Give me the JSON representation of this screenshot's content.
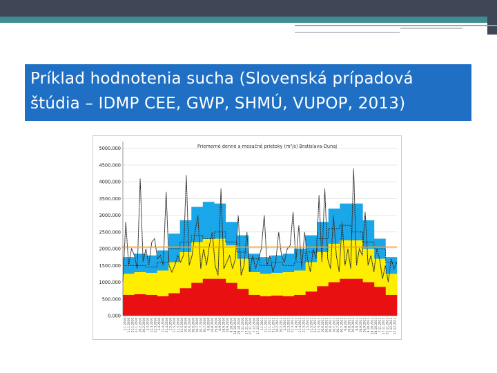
{
  "slide": {
    "title": "Príklad hodnotenia sucha (Slovenská prípadová štúdia – IDMP CEE, GWP, SHMÚ, VUPOP, 2013)"
  },
  "colors": {
    "header_dark": "#3f4656",
    "header_teal": "#3f8c93",
    "title_box": "#1f6fc4",
    "band_red": "#e81010",
    "band_yellow": "#ffee00",
    "band_blue": "#1aa7ea",
    "threshold": "#f0a030",
    "daily_line": "#111111"
  },
  "chart_data": {
    "type": "area",
    "title": "Priemerné denné a mesačné prietoky (m³/s) Bratislava-Dunaj",
    "ylim": [
      0,
      5200
    ],
    "yticks": [
      "0.000",
      "500.000",
      "1000.000",
      "1500.000",
      "2000.000",
      "2500.000",
      "3000.000",
      "3500.000",
      "4000.000",
      "4500.000",
      "5000.000"
    ],
    "ytick_values": [
      0,
      500,
      1000,
      1500,
      2000,
      2500,
      3000,
      3500,
      4000,
      4500,
      5000
    ],
    "months": 24,
    "series": [
      {
        "values": [
          620,
          640,
          620,
          580,
          670,
          820,
          980,
          1100,
          1100,
          980,
          800,
          620,
          580,
          600,
          580,
          620,
          720,
          880,
          1000,
          1100,
          1100,
          1000,
          860,
          620
        ]
      },
      {
        "values": [
          1250,
          1300,
          1280,
          1350,
          1600,
          1900,
          2200,
          2300,
          2300,
          2100,
          1700,
          1300,
          1250,
          1280,
          1300,
          1350,
          1600,
          1900,
          2150,
          2250,
          2250,
          2000,
          1700,
          1250
        ]
      },
      {
        "values": [
          1750,
          1850,
          1800,
          1950,
          2450,
          2850,
          3250,
          3400,
          3350,
          2800,
          2400,
          1850,
          1750,
          1800,
          1850,
          2000,
          2400,
          2800,
          3200,
          3350,
          3350,
          2850,
          2300,
          1750
        ]
      },
      {
        "values": [
          1000,
          2800,
          1500,
          2000,
          1800,
          1400,
          4100,
          1600,
          2000,
          1500,
          2200,
          2300,
          1700,
          1800,
          1500,
          3700,
          1500,
          1300,
          1500,
          1800,
          1600,
          1800,
          4200,
          1500,
          1800,
          2500,
          3000,
          1400,
          2000,
          1500,
          2100,
          2500,
          1500,
          1200,
          3800,
          1400,
          1600,
          1800,
          1400,
          1700,
          3000,
          1200,
          1500,
          2500,
          1300,
          1800,
          1400,
          1700,
          2000,
          3000,
          1500,
          1800,
          1300,
          1600,
          2500,
          1800,
          1600,
          2000,
          2100,
          3100,
          1600,
          2700,
          1400,
          2500,
          1700,
          1300,
          2000,
          1700,
          3600,
          1600,
          3800,
          1700,
          1400,
          3000,
          1800,
          1300,
          2800,
          1500,
          2000,
          1400,
          4400,
          1500,
          2000,
          1800,
          3100,
          1500,
          1800,
          1300,
          2000,
          1700,
          1100,
          1500,
          1000,
          1700,
          1400,
          1600
        ]
      },
      {
        "values": [
          1500,
          1500,
          1450,
          1600,
          2000,
          2200,
          2400,
          2300,
          2500,
          2200,
          1900,
          1700,
          1500,
          1600,
          1500,
          1600,
          1900,
          2300,
          2600,
          2700,
          2500,
          2200,
          2000,
          1600
        ]
      },
      {
        "values": [
          2050
        ]
      }
    ],
    "xlabels": [
      "1.1.2010",
      "11.1.2010",
      "21.1.2010",
      "31.1.2010",
      "10.2.2010",
      "20.2.2010",
      "2.3.2010",
      "12.3.2010",
      "22.3.2010",
      "1.4.2010",
      "11.4.2010",
      "21.4.2010",
      "1.5.2010",
      "11.5.2010",
      "21.5.2010",
      "31.5.2010",
      "10.6.2010",
      "20.6.2010",
      "30.6.2010",
      "10.7.2010",
      "20.7.2010",
      "30.7.2010",
      "9.8.2010",
      "19.8.2010",
      "29.8.2010",
      "8.9.2010",
      "18.9.2010",
      "28.9.2010",
      "8.10.2010",
      "18.10.2010",
      "28.10.2010",
      "7.11.2010",
      "17.11.2010",
      "27.11.2010",
      "7.12.2010",
      "17.12.2010",
      "1.1.2011",
      "11.1.2011",
      "21.1.2011",
      "31.1.2011",
      "10.2.2011",
      "20.2.2011",
      "2.3.2011",
      "12.3.2011",
      "22.3.2011",
      "1.4.2011",
      "11.4.2011",
      "21.4.2011",
      "1.5.2011",
      "11.5.2011",
      "21.5.2011",
      "31.5.2011",
      "10.6.2011",
      "20.6.2011",
      "30.6.2011",
      "10.7.2011",
      "20.7.2011",
      "30.7.2011",
      "9.8.2011",
      "19.8.2011",
      "29.8.2011",
      "8.9.2011",
      "18.9.2011",
      "28.9.2011",
      "8.10.2011",
      "18.10.2011",
      "28.10.2011",
      "7.11.2011",
      "17.11.2011",
      "27.11.2011",
      "7.12.2011",
      "17.12.2011"
    ],
    "legend": "none"
  }
}
